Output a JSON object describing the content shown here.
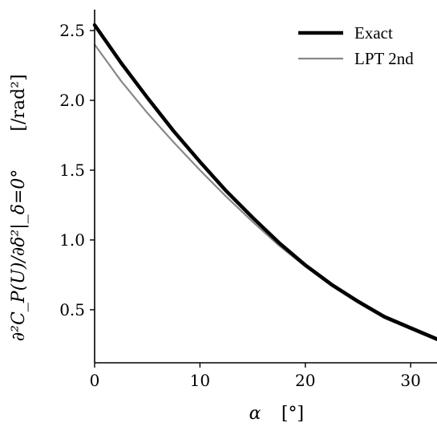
{
  "chart_data": {
    "type": "line",
    "xlabel": "α",
    "xlabel_unit": "[°]",
    "ylabel": "∂²C_P(U)/∂δ²|_δ=0°",
    "ylabel_unit": "[/rad²]",
    "xlim": [
      0,
      32.5
    ],
    "ylim": [
      0.12,
      2.65
    ],
    "x_ticks": [
      0,
      10,
      20,
      30
    ],
    "x_tick_labels": [
      "0",
      "10",
      "20",
      "30"
    ],
    "y_ticks": [
      0.5,
      1.0,
      1.5,
      2.0,
      2.5
    ],
    "y_tick_labels": [
      "0.5",
      "1.0",
      "1.5",
      "2.0",
      "2.5"
    ],
    "legend": "top-right",
    "grid": false,
    "series": [
      {
        "name": "Exact",
        "color": "#000000",
        "x": [
          0,
          2.5,
          5,
          7.5,
          10,
          12.5,
          15,
          17.5,
          20,
          22.5,
          25,
          27.5,
          30,
          32.5
        ],
        "y": [
          2.54,
          2.27,
          2.02,
          1.78,
          1.56,
          1.35,
          1.16,
          0.98,
          0.82,
          0.68,
          0.56,
          0.45,
          0.37,
          0.29
        ]
      },
      {
        "name": "LPT 2nd",
        "color": "#888888",
        "x": [
          0,
          2.5,
          5,
          7.5,
          10,
          12.5,
          15,
          17.5,
          20,
          22.5,
          25,
          27.5,
          30,
          32.5
        ],
        "y": [
          2.4,
          2.14,
          1.91,
          1.7,
          1.5,
          1.31,
          1.13,
          0.96,
          0.81,
          0.67,
          0.55,
          0.44,
          0.36,
          0.28
        ]
      }
    ]
  }
}
